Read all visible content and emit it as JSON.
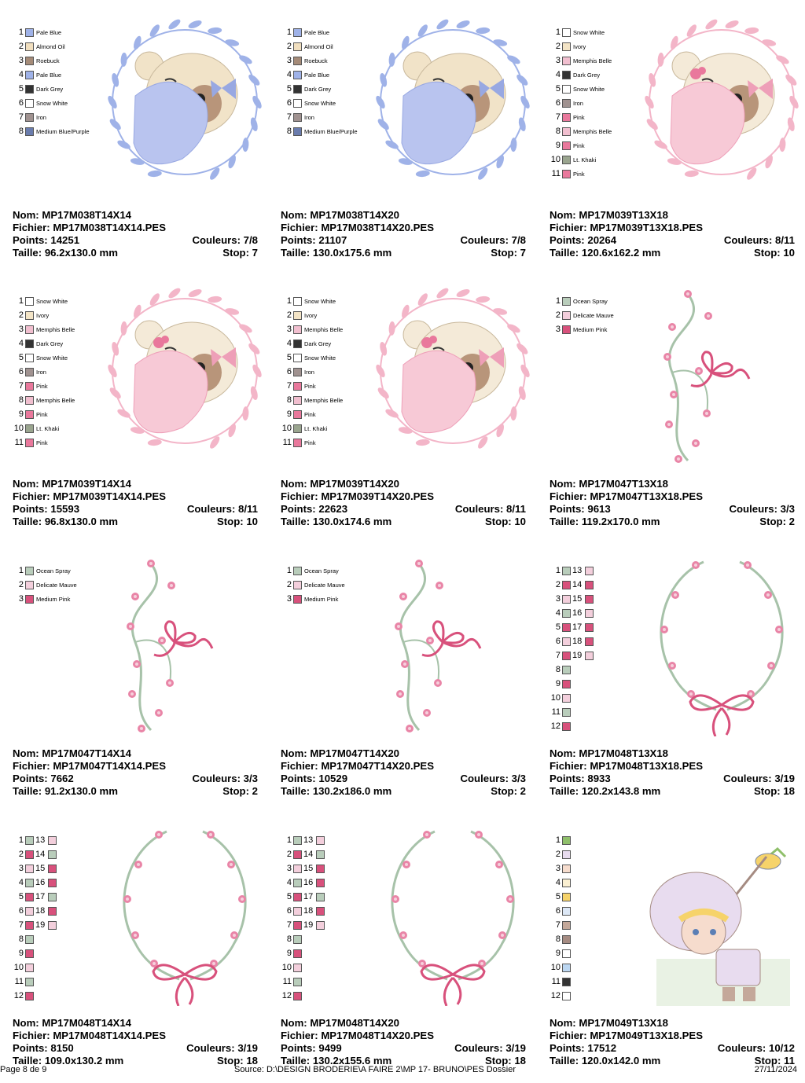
{
  "labels": {
    "nom": "Nom:",
    "fichier": "Fichier:",
    "points": "Points:",
    "couleurs": "Couleurs:",
    "taille": "Taille:",
    "stop": "Stop:"
  },
  "designs": [
    {
      "nom": "MP17M038T14X14",
      "fichier": "MP17M038T14X14.PES",
      "points": "14251",
      "couleurs": "7/8",
      "taille": "96.2x130.0 mm",
      "stop": "7",
      "art": "bear-blue",
      "colors": [
        {
          "n": "1",
          "name": "Pale Blue",
          "hex": "#9fb2e8"
        },
        {
          "n": "2",
          "name": "Almond Oil",
          "hex": "#f1dfbf"
        },
        {
          "n": "3",
          "name": "Roebuck",
          "hex": "#a58b78"
        },
        {
          "n": "4",
          "name": "Pale Blue",
          "hex": "#9fb2e8"
        },
        {
          "n": "5",
          "name": "Dark Grey",
          "hex": "#333333"
        },
        {
          "n": "6",
          "name": "Snow White",
          "hex": "#ffffff"
        },
        {
          "n": "7",
          "name": "Iron",
          "hex": "#a09290"
        },
        {
          "n": "8",
          "name": "Medium Blue/Purple",
          "hex": "#6a7cad"
        }
      ]
    },
    {
      "nom": "MP17M038T14X20",
      "fichier": "MP17M038T14X20.PES",
      "points": "21107",
      "couleurs": "7/8",
      "taille": "130.0x175.6 mm",
      "stop": "7",
      "art": "bear-blue",
      "colors": [
        {
          "n": "1",
          "name": "Pale Blue",
          "hex": "#9fb2e8"
        },
        {
          "n": "2",
          "name": "Almond Oil",
          "hex": "#f1dfbf"
        },
        {
          "n": "3",
          "name": "Roebuck",
          "hex": "#a58b78"
        },
        {
          "n": "4",
          "name": "Pale Blue",
          "hex": "#9fb2e8"
        },
        {
          "n": "5",
          "name": "Dark Grey",
          "hex": "#333333"
        },
        {
          "n": "6",
          "name": "Snow White",
          "hex": "#ffffff"
        },
        {
          "n": "7",
          "name": "Iron",
          "hex": "#a09290"
        },
        {
          "n": "8",
          "name": "Medium Blue/Purple",
          "hex": "#6a7cad"
        }
      ]
    },
    {
      "nom": "MP17M039T13X18",
      "fichier": "MP17M039T13X18.PES",
      "points": "20264",
      "couleurs": "8/11",
      "taille": "120.6x162.2 mm",
      "stop": "10",
      "art": "bear-pink",
      "colors": [
        {
          "n": "1",
          "name": "Snow White",
          "hex": "#ffffff"
        },
        {
          "n": "2",
          "name": "Ivory",
          "hex": "#f3e4c6"
        },
        {
          "n": "3",
          "name": "Memphis Belle",
          "hex": "#f1bfcf"
        },
        {
          "n": "4",
          "name": "Dark Grey",
          "hex": "#333333"
        },
        {
          "n": "5",
          "name": "Snow White",
          "hex": "#ffffff"
        },
        {
          "n": "6",
          "name": "Iron",
          "hex": "#a09290"
        },
        {
          "n": "7",
          "name": "Pink",
          "hex": "#e9789c"
        },
        {
          "n": "8",
          "name": "Memphis Belle",
          "hex": "#f1bfcf"
        },
        {
          "n": "9",
          "name": "Pink",
          "hex": "#e9789c"
        },
        {
          "n": "10",
          "name": "Lt. Khaki",
          "hex": "#9aa58f"
        },
        {
          "n": "11",
          "name": "Pink",
          "hex": "#e9789c"
        }
      ]
    },
    {
      "nom": "MP17M039T14X14",
      "fichier": "MP17M039T14X14.PES",
      "points": "15593",
      "couleurs": "8/11",
      "taille": "96.8x130.0 mm",
      "stop": "10",
      "art": "bear-pink",
      "colors": [
        {
          "n": "1",
          "name": "Snow White",
          "hex": "#ffffff"
        },
        {
          "n": "2",
          "name": "Ivory",
          "hex": "#f3e4c6"
        },
        {
          "n": "3",
          "name": "Memphis Belle",
          "hex": "#f1bfcf"
        },
        {
          "n": "4",
          "name": "Dark Grey",
          "hex": "#333333"
        },
        {
          "n": "5",
          "name": "Snow White",
          "hex": "#ffffff"
        },
        {
          "n": "6",
          "name": "Iron",
          "hex": "#a09290"
        },
        {
          "n": "7",
          "name": "Pink",
          "hex": "#e9789c"
        },
        {
          "n": "8",
          "name": "Memphis Belle",
          "hex": "#f1bfcf"
        },
        {
          "n": "9",
          "name": "Pink",
          "hex": "#e9789c"
        },
        {
          "n": "10",
          "name": "Lt. Khaki",
          "hex": "#9aa58f"
        },
        {
          "n": "11",
          "name": "Pink",
          "hex": "#e9789c"
        }
      ]
    },
    {
      "nom": "MP17M039T14X20",
      "fichier": "MP17M039T14X20.PES",
      "points": "22623",
      "couleurs": "8/11",
      "taille": "130.0x174.6 mm",
      "stop": "10",
      "art": "bear-pink",
      "colors": [
        {
          "n": "1",
          "name": "Snow White",
          "hex": "#ffffff"
        },
        {
          "n": "2",
          "name": "Ivory",
          "hex": "#f3e4c6"
        },
        {
          "n": "3",
          "name": "Memphis Belle",
          "hex": "#f1bfcf"
        },
        {
          "n": "4",
          "name": "Dark Grey",
          "hex": "#333333"
        },
        {
          "n": "5",
          "name": "Snow White",
          "hex": "#ffffff"
        },
        {
          "n": "6",
          "name": "Iron",
          "hex": "#a09290"
        },
        {
          "n": "7",
          "name": "Pink",
          "hex": "#e9789c"
        },
        {
          "n": "8",
          "name": "Memphis Belle",
          "hex": "#f1bfcf"
        },
        {
          "n": "9",
          "name": "Pink",
          "hex": "#e9789c"
        },
        {
          "n": "10",
          "name": "Lt. Khaki",
          "hex": "#9aa58f"
        },
        {
          "n": "11",
          "name": "Pink",
          "hex": "#e9789c"
        }
      ]
    },
    {
      "nom": "MP17M047T13X18",
      "fichier": "MP17M047T13X18.PES",
      "points": "9613",
      "couleurs": "3/3",
      "taille": "119.2x170.0 mm",
      "stop": "2",
      "art": "vine-bow",
      "colors": [
        {
          "n": "1",
          "name": "Ocean Spray",
          "hex": "#b9cdbb"
        },
        {
          "n": "2",
          "name": "Delicate Mauve",
          "hex": "#f3cfdc"
        },
        {
          "n": "3",
          "name": "Medium Pink",
          "hex": "#d8517c"
        }
      ]
    },
    {
      "nom": "MP17M047T14X14",
      "fichier": "MP17M047T14X14.PES",
      "points": "7662",
      "couleurs": "3/3",
      "taille": "91.2x130.0 mm",
      "stop": "2",
      "art": "vine-bow",
      "colors": [
        {
          "n": "1",
          "name": "Ocean Spray",
          "hex": "#b9cdbb"
        },
        {
          "n": "2",
          "name": "Delicate Mauve",
          "hex": "#f3cfdc"
        },
        {
          "n": "3",
          "name": "Medium Pink",
          "hex": "#d8517c"
        }
      ]
    },
    {
      "nom": "MP17M047T14X20",
      "fichier": "MP17M047T14X20.PES",
      "points": "10529",
      "couleurs": "3/3",
      "taille": "130.2x186.0 mm",
      "stop": "2",
      "art": "vine-bow",
      "colors": [
        {
          "n": "1",
          "name": "Ocean Spray",
          "hex": "#b9cdbb"
        },
        {
          "n": "2",
          "name": "Delicate Mauve",
          "hex": "#f3cfdc"
        },
        {
          "n": "3",
          "name": "Medium Pink",
          "hex": "#d8517c"
        }
      ]
    },
    {
      "nom": "MP17M048T13X18",
      "fichier": "MP17M048T13X18.PES",
      "points": "8933",
      "couleurs": "3/19",
      "taille": "120.2x143.8 mm",
      "stop": "18",
      "art": "wreath-bow",
      "colors": [
        {
          "n": "1",
          "hex": "#b9cdbb"
        },
        {
          "n": "2",
          "hex": "#d8517c"
        },
        {
          "n": "3",
          "hex": "#f3cfdc"
        },
        {
          "n": "4",
          "hex": "#b9cdbb"
        },
        {
          "n": "5",
          "hex": "#d8517c"
        },
        {
          "n": "6",
          "hex": "#f3cfdc"
        },
        {
          "n": "7",
          "hex": "#d8517c"
        },
        {
          "n": "8",
          "hex": "#b9cdbb"
        },
        {
          "n": "9",
          "hex": "#d8517c"
        },
        {
          "n": "10",
          "hex": "#f3cfdc"
        },
        {
          "n": "11",
          "hex": "#b9cdbb"
        },
        {
          "n": "12",
          "hex": "#d8517c"
        },
        {
          "n": "13",
          "hex": "#f3cfdc"
        },
        {
          "n": "14",
          "hex": "#d8517c"
        },
        {
          "n": "15",
          "hex": "#d8517c"
        },
        {
          "n": "16",
          "hex": "#f3cfdc"
        },
        {
          "n": "17",
          "hex": "#d8517c"
        },
        {
          "n": "18",
          "hex": "#d8517c"
        },
        {
          "n": "19",
          "hex": "#f3cfdc"
        }
      ]
    },
    {
      "nom": "MP17M048T14X14",
      "fichier": "MP17M048T14X14.PES",
      "points": "8150",
      "couleurs": "3/19",
      "taille": "109.0x130.2 mm",
      "stop": "18",
      "art": "wreath-bow",
      "colors": [
        {
          "n": "1",
          "hex": "#b9cdbb"
        },
        {
          "n": "2",
          "hex": "#d8517c"
        },
        {
          "n": "3",
          "hex": "#f3cfdc"
        },
        {
          "n": "4",
          "hex": "#b9cdbb"
        },
        {
          "n": "5",
          "hex": "#d8517c"
        },
        {
          "n": "6",
          "hex": "#f3cfdc"
        },
        {
          "n": "7",
          "hex": "#d8517c"
        },
        {
          "n": "8",
          "hex": "#b9cdbb"
        },
        {
          "n": "9",
          "hex": "#d8517c"
        },
        {
          "n": "10",
          "hex": "#f3cfdc"
        },
        {
          "n": "11",
          "hex": "#b9cdbb"
        },
        {
          "n": "12",
          "hex": "#d8517c"
        },
        {
          "n": "13",
          "hex": "#f3cfdc"
        },
        {
          "n": "14",
          "hex": "#b9cdbb"
        },
        {
          "n": "15",
          "hex": "#d8517c"
        },
        {
          "n": "16",
          "hex": "#d8517c"
        },
        {
          "n": "17",
          "hex": "#b9cdbb"
        },
        {
          "n": "18",
          "hex": "#d8517c"
        },
        {
          "n": "19",
          "hex": "#f3cfdc"
        }
      ]
    },
    {
      "nom": "MP17M048T14X20",
      "fichier": "MP17M048T14X20.PES",
      "points": "9499",
      "couleurs": "3/19",
      "taille": "130.2x155.6 mm",
      "stop": "18",
      "art": "wreath-bow",
      "colors": [
        {
          "n": "1",
          "hex": "#b9cdbb"
        },
        {
          "n": "2",
          "hex": "#d8517c"
        },
        {
          "n": "3",
          "hex": "#f3cfdc"
        },
        {
          "n": "4",
          "hex": "#b9cdbb"
        },
        {
          "n": "5",
          "hex": "#d8517c"
        },
        {
          "n": "6",
          "hex": "#f3cfdc"
        },
        {
          "n": "7",
          "hex": "#d8517c"
        },
        {
          "n": "8",
          "hex": "#b9cdbb"
        },
        {
          "n": "9",
          "hex": "#d8517c"
        },
        {
          "n": "10",
          "hex": "#f3cfdc"
        },
        {
          "n": "11",
          "hex": "#b9cdbb"
        },
        {
          "n": "12",
          "hex": "#d8517c"
        },
        {
          "n": "13",
          "hex": "#f3cfdc"
        },
        {
          "n": "14",
          "hex": "#b9cdbb"
        },
        {
          "n": "15",
          "hex": "#d8517c"
        },
        {
          "n": "16",
          "hex": "#d8517c"
        },
        {
          "n": "17",
          "hex": "#b9cdbb"
        },
        {
          "n": "18",
          "hex": "#d8517c"
        },
        {
          "n": "19",
          "hex": "#f3cfdc"
        }
      ]
    },
    {
      "nom": "MP17M049T13X18",
      "fichier": "MP17M049T13X18.PES",
      "points": "17512",
      "couleurs": "10/12",
      "taille": "120.0x142.0 mm",
      "stop": "11",
      "art": "fisher-girl",
      "colors": [
        {
          "n": "1",
          "hex": "#8fbf6a"
        },
        {
          "n": "2",
          "hex": "#e8dcef"
        },
        {
          "n": "3",
          "hex": "#f6dccd"
        },
        {
          "n": "4",
          "hex": "#fbf0d2"
        },
        {
          "n": "5",
          "hex": "#f6d36a"
        },
        {
          "n": "6",
          "hex": "#dde8f6"
        },
        {
          "n": "7",
          "hex": "#c4a89a"
        },
        {
          "n": "8",
          "hex": "#a58b82"
        },
        {
          "n": "9",
          "hex": "#ffffff"
        },
        {
          "n": "10",
          "hex": "#bcd7f2"
        },
        {
          "n": "11",
          "hex": "#333333"
        },
        {
          "n": "12",
          "hex": "#ffffff"
        }
      ]
    }
  ],
  "footer": {
    "page": "Page 8 de 9",
    "source": "Source: D:\\DESIGN BRODERIE\\A FAIRE 2\\MP 17- BRUNO\\PES Dossier",
    "date": "27/11/2024"
  }
}
